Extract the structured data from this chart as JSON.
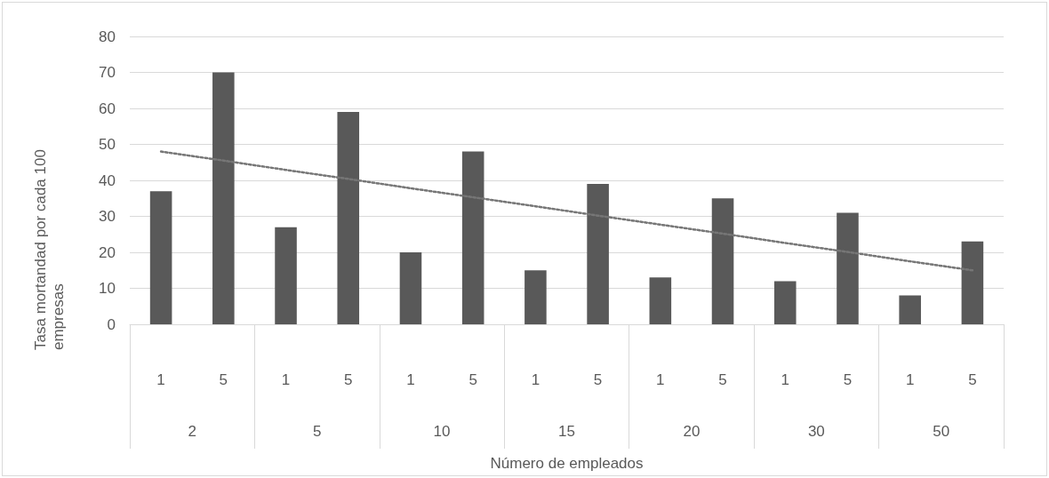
{
  "chart_data": {
    "type": "bar",
    "xlabel": "Número de empleados",
    "ylabel": "Tasa mortandad por cada 100 empresas",
    "categories": [
      "1",
      "5",
      "1",
      "5",
      "1",
      "5",
      "1",
      "5",
      "1",
      "5",
      "1",
      "5",
      "1",
      "5"
    ],
    "annotations": [
      "2",
      "5",
      "10",
      "15",
      "20",
      "30",
      "50"
    ],
    "series": [
      {
        "color": "#595959",
        "values": [
          37,
          70,
          27,
          59,
          20,
          48,
          15,
          39,
          13,
          35,
          12,
          31,
          8,
          23
        ]
      },
      {
        "type": "line",
        "color": "#767676",
        "line_style": "dotted",
        "marker": "none",
        "values": [
          48,
          45.5,
          42.9,
          40.4,
          37.8,
          35.3,
          32.8,
          30.2,
          27.7,
          25.2,
          22.6,
          20.1,
          17.5,
          15
        ]
      }
    ],
    "ylim": [
      0,
      80
    ],
    "yticks": [
      0,
      10,
      20,
      30,
      40,
      50,
      60,
      70,
      80
    ],
    "grid": "y"
  }
}
